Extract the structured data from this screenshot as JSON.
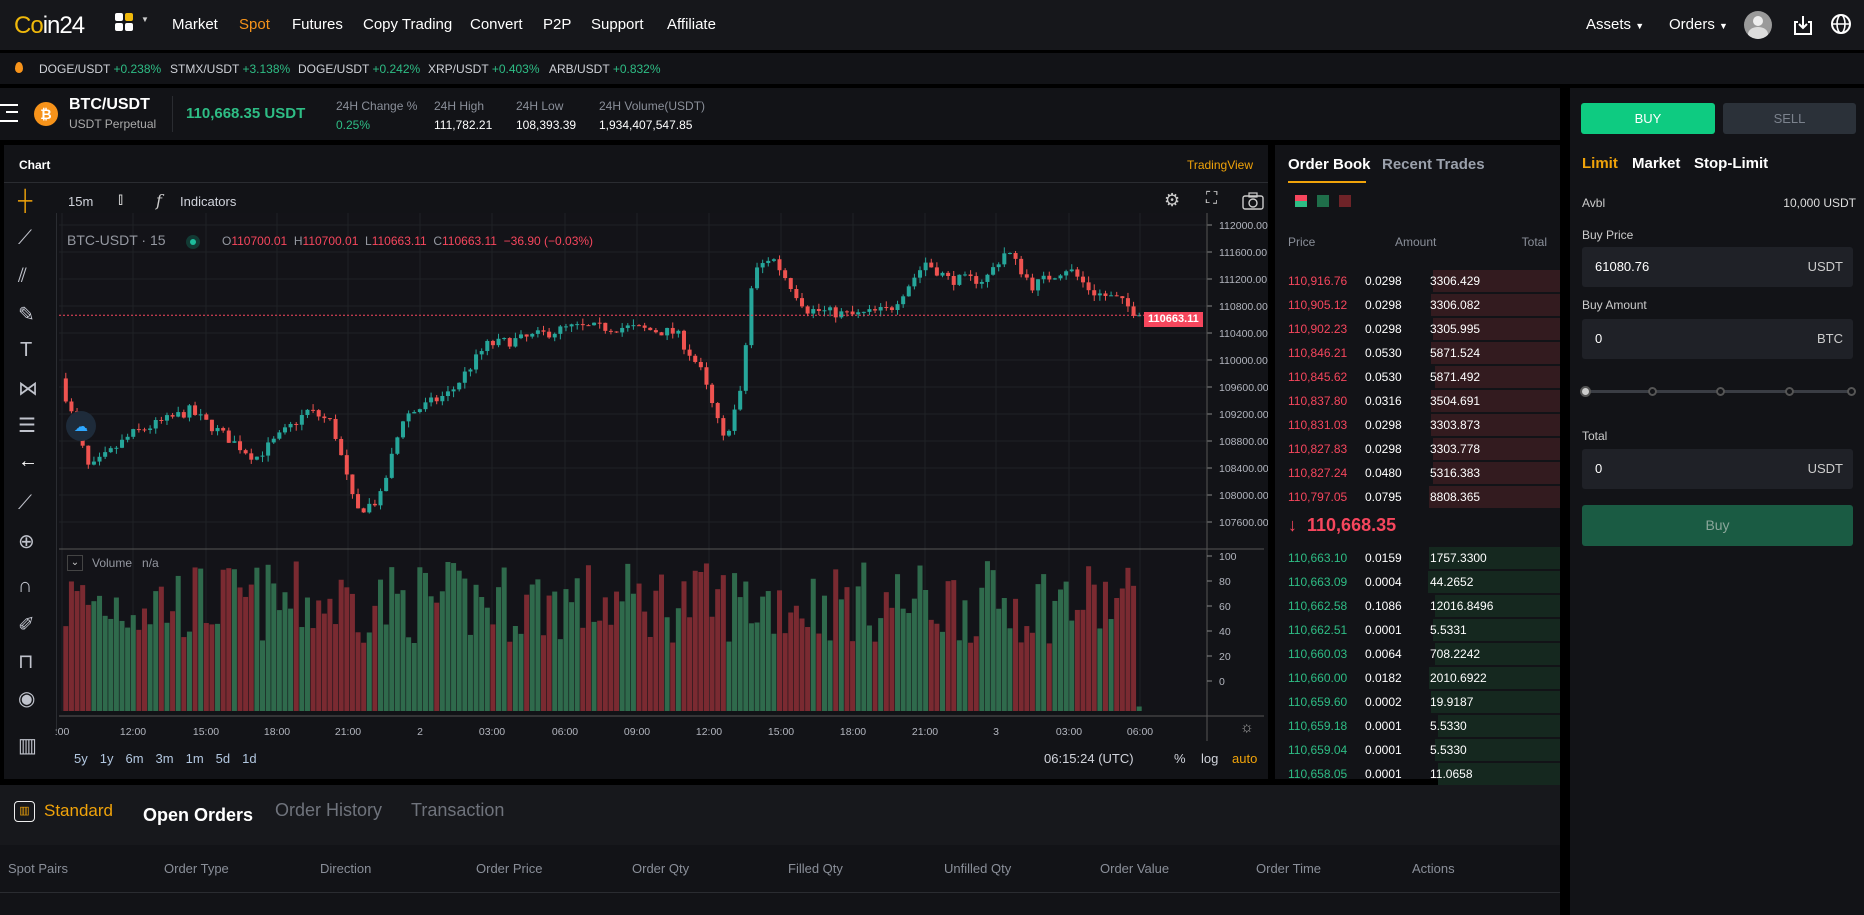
{
  "nav": {
    "logo": "Coin24",
    "items": [
      "Market",
      "Spot",
      "Futures",
      "Copy Trading",
      "Convert",
      "P2P",
      "Support",
      "Affiliate"
    ],
    "active": "Spot",
    "assets": "Assets",
    "orders": "Orders"
  },
  "ticker": [
    {
      "pair": "DOGE/USDT",
      "change": "+0.238%"
    },
    {
      "pair": "STMX/USDT",
      "change": "+3.138%"
    },
    {
      "pair": "DOGE/USDT",
      "change": "+0.242%"
    },
    {
      "pair": "XRP/USDT",
      "change": "+0.403%"
    },
    {
      "pair": "ARB/USDT",
      "change": "+0.832%"
    }
  ],
  "pair": {
    "symbol": "BTC/USDT",
    "sub": "USDT Perpetual",
    "price": "110,668.35 USDT",
    "stats": [
      {
        "label": "24H Change %",
        "value": "0.25%"
      },
      {
        "label": "24H High",
        "value": "111,782.21"
      },
      {
        "label": "24H Low",
        "value": "108,393.39"
      },
      {
        "label": "24H Volume(USDT)",
        "value": "1,934,407,547.85"
      }
    ]
  },
  "chart": {
    "title": "Chart",
    "provider": "TradingView",
    "interval": "15m",
    "indicators": "Indicators",
    "legend_symbol": "BTC-USDT · 15",
    "ohlc": {
      "o": "110700.01",
      "h": "110700.01",
      "l": "110663.11",
      "c": "110663.11",
      "chg": "−36.90 (−0.03%)"
    },
    "last_price_tag": "110663.11",
    "price_ticks": [
      "112000.00",
      "111600.00",
      "111200.00",
      "110800.00",
      "110400.00",
      "110000.00",
      "109600.00",
      "109200.00",
      "108800.00",
      "108400.00",
      "108000.00",
      "107600.00"
    ],
    "volume_label": "Volume",
    "volume_value": "n/a",
    "volume_ticks": [
      "100",
      "80",
      "60",
      "40",
      "20",
      "0"
    ],
    "time_ticks": [
      ":00",
      "12:00",
      "15:00",
      "18:00",
      "21:00",
      "2",
      "03:00",
      "06:00",
      "09:00",
      "12:00",
      "15:00",
      "18:00",
      "21:00",
      "3",
      "03:00",
      "06:00"
    ],
    "ranges": [
      "5y",
      "1y",
      "6m",
      "3m",
      "1m",
      "5d",
      "1d"
    ],
    "clock": "06:15:24 (UTC)",
    "pct": "%",
    "log": "log",
    "auto": "auto",
    "up_color": "#26a69a",
    "down_color": "#ef5350"
  },
  "book": {
    "tabs": [
      "Order Book",
      "Recent Trades"
    ],
    "headers": [
      "Price",
      "Amount",
      "Total"
    ],
    "asks": [
      [
        "110,916.76",
        "0.0298",
        "3306.429"
      ],
      [
        "110,905.12",
        "0.0298",
        "3306.082"
      ],
      [
        "110,902.23",
        "0.0298",
        "3305.995"
      ],
      [
        "110,846.21",
        "0.0530",
        "5871.524"
      ],
      [
        "110,845.62",
        "0.0530",
        "5871.492"
      ],
      [
        "110,837.80",
        "0.0316",
        "3504.691"
      ],
      [
        "110,831.03",
        "0.0298",
        "3303.873"
      ],
      [
        "110,827.83",
        "0.0298",
        "3303.778"
      ],
      [
        "110,827.24",
        "0.0480",
        "5316.383"
      ],
      [
        "110,797.05",
        "0.0795",
        "8808.365"
      ]
    ],
    "mid": "110,668.35",
    "bids": [
      [
        "110,663.10",
        "0.0159",
        "1757.3300"
      ],
      [
        "110,663.09",
        "0.0004",
        "44.2652"
      ],
      [
        "110,662.58",
        "0.1086",
        "12016.8496"
      ],
      [
        "110,662.51",
        "0.0001",
        "5.5331"
      ],
      [
        "110,660.03",
        "0.0064",
        "708.2242"
      ],
      [
        "110,660.00",
        "0.0182",
        "2010.6922"
      ],
      [
        "110,659.60",
        "0.0002",
        "19.9187"
      ],
      [
        "110,659.18",
        "0.0001",
        "5.5330"
      ],
      [
        "110,659.04",
        "0.0001",
        "5.5330"
      ],
      [
        "110,658.05",
        "0.0001",
        "11.0658"
      ]
    ]
  },
  "trade": {
    "buy": "BUY",
    "sell": "SELL",
    "types": [
      "Limit",
      "Market",
      "Stop-Limit"
    ],
    "avbl_label": "Avbl",
    "avbl": "10,000 USDT",
    "price_label": "Buy Price",
    "price": "61080.76",
    "price_unit": "USDT",
    "amount_label": "Buy Amount",
    "amount": "0",
    "amount_unit": "BTC",
    "slider_percent": 0,
    "total_label": "Total",
    "total": "0",
    "total_unit": "USDT",
    "submit": "Buy"
  },
  "bottom": {
    "mode": "Standard",
    "tabs": [
      "Open Orders",
      "Order History",
      "Transaction"
    ],
    "columns": [
      "Spot Pairs",
      "Order Type",
      "Direction",
      "Order Price",
      "Order Qty",
      "Filled Qty",
      "Unfilled Qty",
      "Order Value",
      "Order Time",
      "Actions"
    ]
  }
}
